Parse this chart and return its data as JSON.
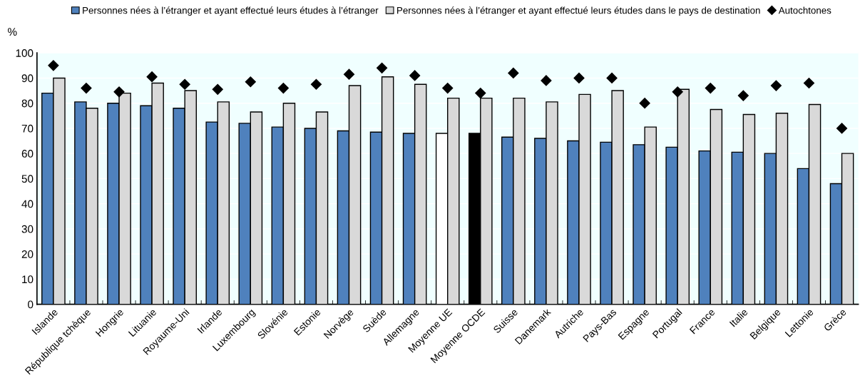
{
  "chart_data": {
    "type": "bar",
    "ylabel": "%",
    "categories": [
      "Islande",
      "République tchèque",
      "Hongrie",
      "Lituanie",
      "Royaume-Uni",
      "Irlande",
      "Luxembourg",
      "Slovénie",
      "Estonie",
      "Norvège",
      "Suède",
      "Allemagne",
      "Moyenne UE",
      "Moyenne OCDE",
      "Suisse",
      "Danemark",
      "Autriche",
      "Pays-Bas",
      "Espagne",
      "Portugal",
      "France",
      "Italie",
      "Belgique",
      "Lettonie",
      "Grèce"
    ],
    "series": [
      {
        "name": "Personnes nées à l’étranger et ayant effectué leurs études à l’étranger",
        "color": "#4f81bd",
        "colors": [
          "#4f81bd",
          "#4f81bd",
          "#4f81bd",
          "#4f81bd",
          "#4f81bd",
          "#4f81bd",
          "#4f81bd",
          "#4f81bd",
          "#4f81bd",
          "#4f81bd",
          "#4f81bd",
          "#4f81bd",
          "#ffffff",
          "#000000",
          "#4f81bd",
          "#4f81bd",
          "#4f81bd",
          "#4f81bd",
          "#4f81bd",
          "#4f81bd",
          "#4f81bd",
          "#4f81bd",
          "#4f81bd",
          "#4f81bd",
          "#4f81bd"
        ],
        "values": [
          84,
          80.5,
          80,
          79,
          78,
          72.5,
          72,
          70.5,
          70,
          69,
          68.5,
          68,
          68,
          68,
          66.5,
          66,
          65,
          64.5,
          63.5,
          62.5,
          61,
          60.5,
          60,
          54,
          48
        ]
      },
      {
        "name": "Personnes nées à l’étranger et ayant effectué leurs études dans le pays de destination",
        "color": "#d9d9d9",
        "values": [
          90,
          78,
          84,
          88,
          85,
          80.5,
          76.5,
          80,
          76.5,
          87,
          90.5,
          87.5,
          82,
          82,
          82,
          80.5,
          83.5,
          85,
          70.5,
          85.5,
          77.5,
          75.5,
          76,
          79.5,
          60
        ]
      },
      {
        "name": "Autochtones",
        "type": "scatter",
        "color": "#000000",
        "marker": "diamond",
        "values": [
          95,
          86,
          84.5,
          90.5,
          87.5,
          85.5,
          88.5,
          86,
          87.5,
          91.5,
          94,
          91,
          86,
          84,
          92,
          89,
          90,
          90,
          80,
          84.5,
          86,
          83,
          87,
          88,
          70
        ]
      }
    ],
    "ylim": [
      0,
      100
    ],
    "yticks": [
      0,
      10,
      20,
      30,
      40,
      50,
      60,
      70,
      80,
      90,
      100
    ],
    "grid": "y",
    "legend": "top"
  }
}
